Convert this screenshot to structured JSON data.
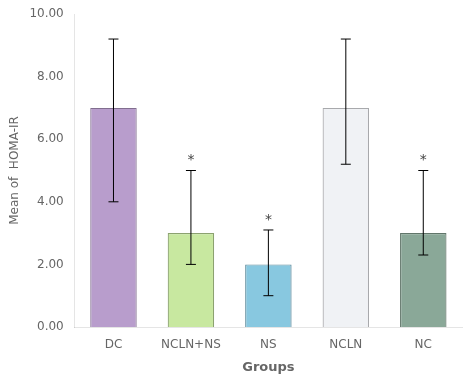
{
  "chart_data": {
    "type": "bar",
    "categories": [
      "DC",
      "NCLN+NS",
      "NS",
      "NCLN",
      "NC"
    ],
    "values": [
      7.0,
      3.0,
      2.0,
      7.0,
      3.0
    ],
    "error_upper": [
      2.2,
      2.0,
      1.1,
      2.2,
      2.0
    ],
    "error_lower": [
      3.0,
      1.0,
      1.0,
      1.8,
      0.7
    ],
    "colors": [
      "#b89dcc",
      "#c8e8a0",
      "#88c8e0",
      "#f0f2f5",
      "#8aA898"
    ],
    "annotations": [
      {
        "category": "NCLN+NS",
        "text": "*"
      },
      {
        "category": "NS",
        "text": "*"
      },
      {
        "category": "NC",
        "text": "*"
      }
    ],
    "ylabel": "Mean of  HOMA-IR",
    "xlabel": "Groups",
    "ylim": [
      0.0,
      10.0
    ],
    "yticks": [
      {
        "value": 0.0,
        "label": "0.00"
      },
      {
        "value": 2.0,
        "label": "2.00"
      },
      {
        "value": 4.0,
        "label": "4.00"
      },
      {
        "value": 6.0,
        "label": "6.00"
      },
      {
        "value": 8.0,
        "label": "8.00"
      },
      {
        "value": 10.0,
        "label": "10.00"
      }
    ],
    "grid": false
  }
}
